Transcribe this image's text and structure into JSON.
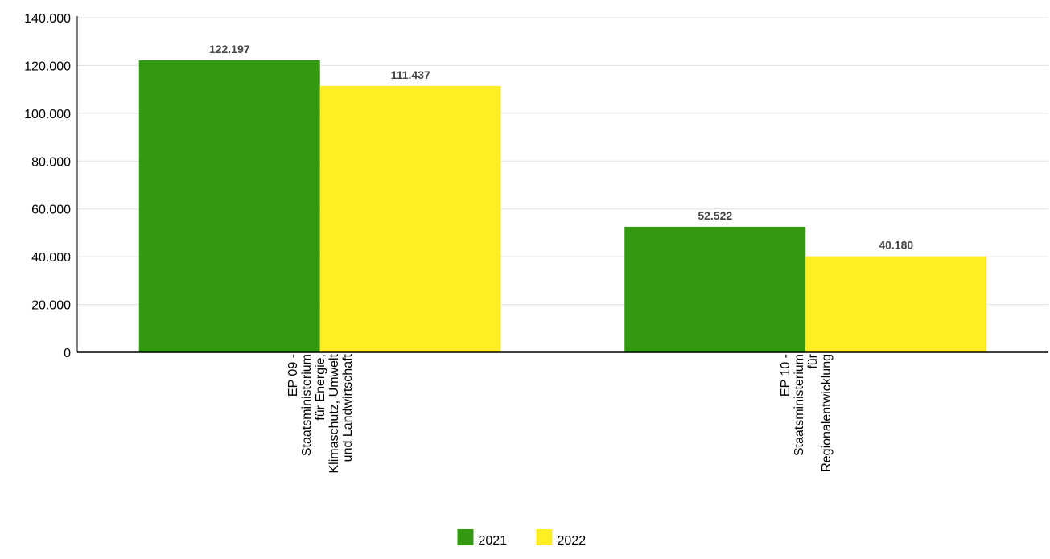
{
  "chart_data": {
    "type": "bar",
    "categories": [
      [
        "EP 09 -",
        "Staatsministerium",
        "für Energie,",
        "Klimaschutz, Umwelt",
        "und Landwirtschaft"
      ],
      [
        "EP 10 -",
        "Staatsministerium",
        "für",
        "Regionalentwicklung"
      ]
    ],
    "series": [
      {
        "name": "2021",
        "color": "#339911",
        "values": [
          122197,
          52522
        ],
        "labels": [
          "122.197",
          "52.522"
        ]
      },
      {
        "name": "2022",
        "color": "#FFEE22",
        "values": [
          111437,
          40180
        ],
        "labels": [
          "111.437",
          "40.180"
        ]
      }
    ],
    "yticks": [
      {
        "value": 0,
        "label": "0"
      },
      {
        "value": 20000,
        "label": "20.000"
      },
      {
        "value": 40000,
        "label": "40.000"
      },
      {
        "value": 60000,
        "label": "60.000"
      },
      {
        "value": 80000,
        "label": "80.000"
      },
      {
        "value": 100000,
        "label": "100.000"
      },
      {
        "value": 120000,
        "label": "120.000"
      },
      {
        "value": 140000,
        "label": "140.000"
      }
    ],
    "ylim": [
      0,
      140000
    ],
    "title": "",
    "xlabel": "",
    "ylabel": "",
    "grid": true,
    "legend_position": "bottom-center"
  }
}
